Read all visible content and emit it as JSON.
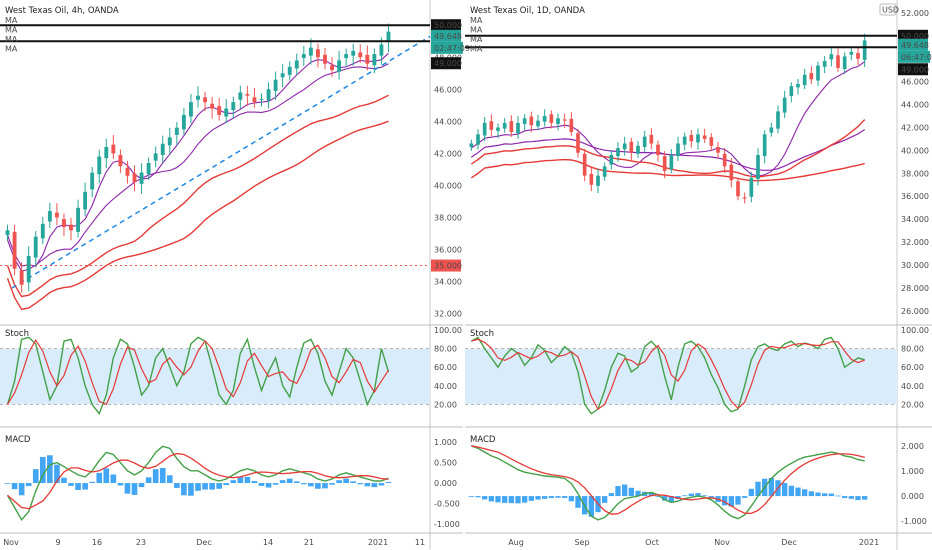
{
  "chart_data": [
    {
      "type": "candlestick",
      "panel": "left",
      "title": "West Texas Oil, 4h, OANDA",
      "ma_labels": [
        "MA",
        "MA",
        "MA",
        "MA"
      ],
      "x_ticks": [
        "Nov",
        "9",
        "16",
        "23",
        "Dec",
        "14",
        "21",
        "2021",
        "11"
      ],
      "y_ticks": [
        "32.000",
        "34.000",
        "36.000",
        "38.000",
        "40.000",
        "42.000",
        "44.000",
        "46.000",
        "48.000",
        "50.000"
      ],
      "ylim": [
        31.6,
        51.2
      ],
      "price_labels": {
        "high": "50.000",
        "last": "49.648",
        "countdown": "02:47:09",
        "low": "49.000",
        "support": "35.000"
      },
      "horizontal_lines": [
        50.0,
        49.0
      ],
      "support_level": 35.0,
      "closes": [
        37.2,
        34.8,
        33.8,
        35.6,
        36.8,
        37.6,
        38.4,
        38.0,
        37.4,
        37.2,
        38.6,
        39.6,
        40.8,
        41.8,
        42.4,
        42.0,
        41.2,
        40.6,
        40.2,
        40.8,
        41.4,
        42.0,
        42.6,
        43.0,
        43.6,
        44.4,
        45.2,
        45.6,
        45.2,
        44.8,
        44.4,
        44.8,
        45.2,
        45.8,
        45.6,
        45.2,
        45.4,
        46.0,
        46.6,
        47.0,
        47.4,
        47.8,
        48.2,
        48.6,
        48.0,
        47.6,
        47.2,
        47.8,
        48.2,
        48.4,
        48.0,
        47.6,
        48.2,
        48.8,
        49.6
      ]
    },
    {
      "type": "candlestick",
      "panel": "right",
      "title": "West Texas Oil, 1D, OANDA",
      "currency": "USD",
      "ma_labels": [
        "MA",
        "MA",
        "MA",
        "MA"
      ],
      "x_ticks": [
        "Aug",
        "Sep",
        "Oct",
        "Nov",
        "Dec",
        "2021"
      ],
      "y_ticks": [
        "26.000",
        "28.000",
        "30.000",
        "32.000",
        "34.000",
        "36.000",
        "38.000",
        "40.000",
        "42.000",
        "44.000",
        "46.000",
        "48.000",
        "50.000",
        "52.000"
      ],
      "ylim": [
        25.2,
        52.6
      ],
      "price_labels": {
        "high": "50.000",
        "last": "49.648",
        "countdown": "06:47:09",
        "low": "49.000"
      },
      "horizontal_lines": [
        50.0,
        49.0
      ],
      "closes": [
        40.6,
        41.4,
        42.4,
        41.8,
        42.0,
        42.4,
        41.6,
        42.4,
        42.8,
        42.2,
        42.6,
        43.0,
        42.4,
        42.8,
        42.6,
        41.6,
        39.8,
        37.8,
        37.0,
        37.8,
        38.6,
        39.6,
        40.2,
        40.6,
        39.8,
        40.4,
        41.2,
        40.6,
        39.6,
        38.2,
        39.6,
        40.6,
        41.2,
        40.8,
        41.4,
        41.0,
        40.4,
        39.8,
        38.6,
        37.4,
        36.0,
        35.8,
        37.6,
        39.6,
        41.4,
        42.0,
        43.4,
        44.6,
        45.6,
        45.8,
        46.6,
        46.2,
        47.4,
        47.8,
        48.4,
        47.2,
        48.2,
        48.6,
        48.0,
        49.6
      ]
    },
    {
      "type": "line",
      "panel": "left-stoch",
      "title": "Stoch",
      "y_ticks": [
        "20.00",
        "40.00",
        "60.00",
        "80.00",
        "100.00"
      ],
      "ylim": [
        0,
        100
      ],
      "band": [
        20,
        80
      ],
      "k_values": [
        20,
        45,
        90,
        92,
        85,
        55,
        25,
        40,
        88,
        90,
        70,
        40,
        20,
        10,
        30,
        70,
        90,
        85,
        60,
        30,
        40,
        70,
        80,
        60,
        40,
        55,
        85,
        92,
        88,
        60,
        30,
        20,
        35,
        75,
        90,
        60,
        35,
        55,
        70,
        40,
        28,
        60,
        86,
        90,
        75,
        45,
        30,
        55,
        80,
        70,
        45,
        20,
        35,
        80,
        55
      ]
    },
    {
      "type": "line",
      "panel": "left-macd",
      "title": "MACD",
      "y_ticks": [
        "-1.000",
        "-0.500",
        "0.000",
        "0.500",
        "1.000"
      ],
      "ylim": [
        -1.15,
        1.25
      ],
      "macd_values": [
        -0.3,
        -0.6,
        -0.9,
        -0.7,
        -0.2,
        0.2,
        0.45,
        0.5,
        0.4,
        0.3,
        0.2,
        0.15,
        0.3,
        0.55,
        0.75,
        0.7,
        0.5,
        0.3,
        0.2,
        0.3,
        0.5,
        0.75,
        0.9,
        0.85,
        0.6,
        0.4,
        0.3,
        0.3,
        0.2,
        0.1,
        0.05,
        0.1,
        0.2,
        0.3,
        0.35,
        0.3,
        0.2,
        0.15,
        0.2,
        0.3,
        0.35,
        0.3,
        0.25,
        0.2,
        0.1,
        0.05,
        0.1,
        0.2,
        0.25,
        0.2,
        0.15,
        0.1,
        0.05,
        0.05,
        0.12
      ]
    },
    {
      "type": "line",
      "panel": "right-stoch",
      "title": "Stoch",
      "y_ticks": [
        "20.00",
        "40.00",
        "60.00",
        "80.00",
        "100.00"
      ],
      "ylim": [
        0,
        100
      ],
      "band": [
        20,
        80
      ],
      "k_values": [
        88,
        92,
        80,
        70,
        60,
        72,
        80,
        75,
        62,
        70,
        84,
        78,
        65,
        72,
        82,
        76,
        55,
        20,
        10,
        15,
        35,
        60,
        75,
        72,
        55,
        60,
        82,
        88,
        80,
        50,
        25,
        60,
        85,
        88,
        82,
        70,
        52,
        38,
        20,
        12,
        15,
        40,
        68,
        82,
        85,
        80,
        78,
        85,
        88,
        82,
        86,
        84,
        80,
        90,
        92,
        80,
        60,
        65,
        70,
        68
      ]
    },
    {
      "type": "line",
      "panel": "right-macd",
      "title": "MACD",
      "y_ticks": [
        "-1.000",
        "0.000",
        "1.000",
        "2.000"
      ],
      "ylim": [
        -1.35,
        2.55
      ],
      "macd_values": [
        2.0,
        1.9,
        1.75,
        1.6,
        1.5,
        1.35,
        1.2,
        1.05,
        0.95,
        0.9,
        0.85,
        0.8,
        0.78,
        0.75,
        0.7,
        0.5,
        0.1,
        -0.4,
        -0.8,
        -0.95,
        -0.85,
        -0.6,
        -0.3,
        -0.1,
        -0.05,
        0.0,
        0.1,
        0.15,
        0.05,
        -0.15,
        -0.25,
        -0.2,
        -0.1,
        -0.05,
        0.0,
        -0.05,
        -0.15,
        -0.35,
        -0.6,
        -0.8,
        -0.9,
        -0.75,
        -0.4,
        0.0,
        0.35,
        0.7,
        0.95,
        1.15,
        1.3,
        1.45,
        1.55,
        1.6,
        1.65,
        1.7,
        1.75,
        1.7,
        1.6,
        1.55,
        1.45,
        1.4
      ]
    }
  ],
  "colors": {
    "up": "#26a69a",
    "down": "#ef5350",
    "ma_red": "#e53935",
    "ma_purple": "#8e24aa",
    "trend": "#1e88e5",
    "stoch_k": "#43a047",
    "stoch_d": "#e53935",
    "macd_line": "#1e88e5",
    "signal_line": "#e53935",
    "hist": "#2196f3",
    "band": "#d9ecfb"
  }
}
